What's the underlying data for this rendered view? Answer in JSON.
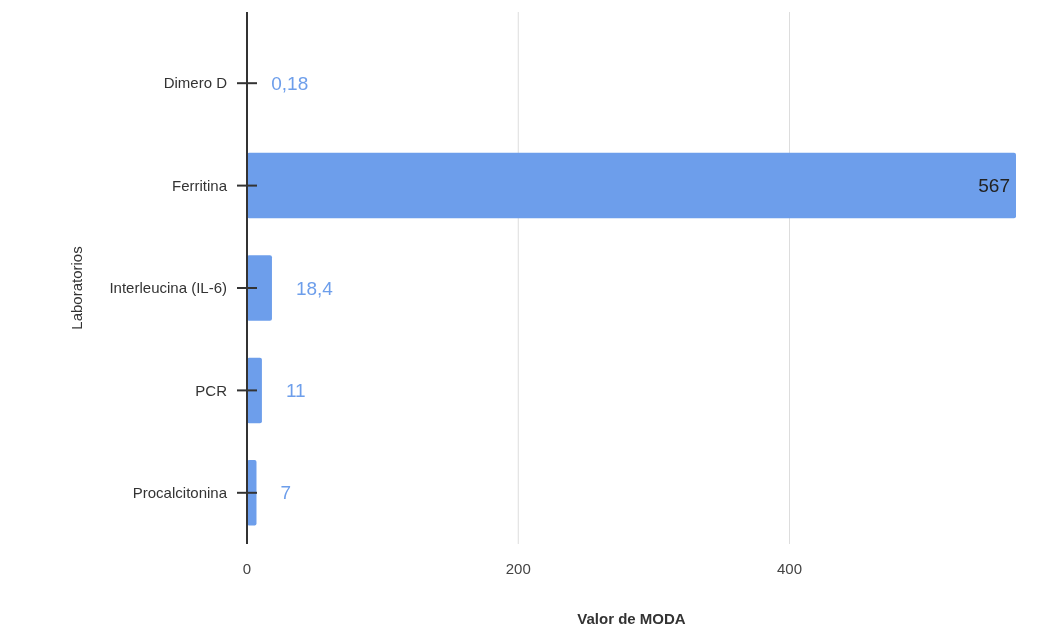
{
  "chart_data": {
    "type": "bar",
    "orientation": "horizontal",
    "xlabel": "Valor de MODA",
    "ylabel": "Laboratorios",
    "categories": [
      "Dimero D",
      "Ferritina",
      "Interleucina (IL-6)",
      "PCR",
      "Procalcitonina"
    ],
    "values": [
      0.18,
      567,
      18.4,
      11,
      7
    ],
    "value_labels": [
      "0,18",
      "567",
      "18,4",
      "11",
      "7"
    ],
    "color": "#6d9eeb",
    "xlim": [
      0,
      567
    ],
    "xticks": [
      0,
      200,
      400
    ],
    "grid": "x"
  }
}
